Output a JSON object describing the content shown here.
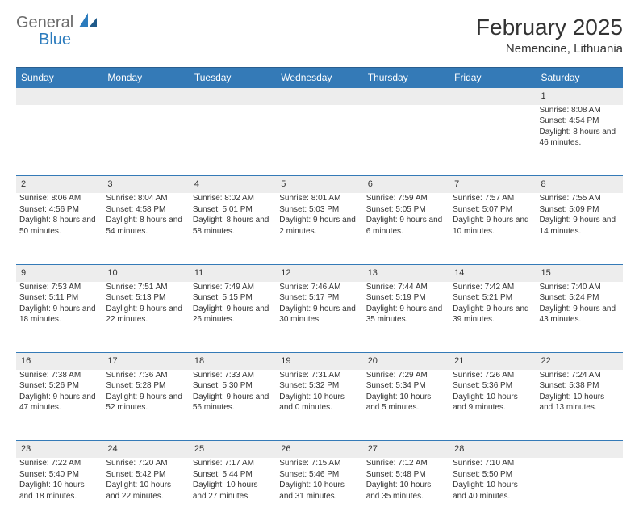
{
  "logo": {
    "general": "General",
    "blue": "Blue"
  },
  "title": {
    "month": "February 2025",
    "location": "Nemencine, Lithuania"
  },
  "colors": {
    "header_bg": "#347ab7",
    "header_text": "#ffffff",
    "daynum_bg": "#ededed",
    "border": "#347ab7",
    "logo_blue": "#2b7bbd",
    "logo_grey": "#6b6b6b"
  },
  "dayNames": [
    "Sunday",
    "Monday",
    "Tuesday",
    "Wednesday",
    "Thursday",
    "Friday",
    "Saturday"
  ],
  "weeks": [
    {
      "nums": [
        "",
        "",
        "",
        "",
        "",
        "",
        "1"
      ],
      "cells": [
        "",
        "",
        "",
        "",
        "",
        "",
        "Sunrise: 8:08 AM\nSunset: 4:54 PM\nDaylight: 8 hours and 46 minutes."
      ]
    },
    {
      "nums": [
        "2",
        "3",
        "4",
        "5",
        "6",
        "7",
        "8"
      ],
      "cells": [
        "Sunrise: 8:06 AM\nSunset: 4:56 PM\nDaylight: 8 hours and 50 minutes.",
        "Sunrise: 8:04 AM\nSunset: 4:58 PM\nDaylight: 8 hours and 54 minutes.",
        "Sunrise: 8:02 AM\nSunset: 5:01 PM\nDaylight: 8 hours and 58 minutes.",
        "Sunrise: 8:01 AM\nSunset: 5:03 PM\nDaylight: 9 hours and 2 minutes.",
        "Sunrise: 7:59 AM\nSunset: 5:05 PM\nDaylight: 9 hours and 6 minutes.",
        "Sunrise: 7:57 AM\nSunset: 5:07 PM\nDaylight: 9 hours and 10 minutes.",
        "Sunrise: 7:55 AM\nSunset: 5:09 PM\nDaylight: 9 hours and 14 minutes."
      ]
    },
    {
      "nums": [
        "9",
        "10",
        "11",
        "12",
        "13",
        "14",
        "15"
      ],
      "cells": [
        "Sunrise: 7:53 AM\nSunset: 5:11 PM\nDaylight: 9 hours and 18 minutes.",
        "Sunrise: 7:51 AM\nSunset: 5:13 PM\nDaylight: 9 hours and 22 minutes.",
        "Sunrise: 7:49 AM\nSunset: 5:15 PM\nDaylight: 9 hours and 26 minutes.",
        "Sunrise: 7:46 AM\nSunset: 5:17 PM\nDaylight: 9 hours and 30 minutes.",
        "Sunrise: 7:44 AM\nSunset: 5:19 PM\nDaylight: 9 hours and 35 minutes.",
        "Sunrise: 7:42 AM\nSunset: 5:21 PM\nDaylight: 9 hours and 39 minutes.",
        "Sunrise: 7:40 AM\nSunset: 5:24 PM\nDaylight: 9 hours and 43 minutes."
      ]
    },
    {
      "nums": [
        "16",
        "17",
        "18",
        "19",
        "20",
        "21",
        "22"
      ],
      "cells": [
        "Sunrise: 7:38 AM\nSunset: 5:26 PM\nDaylight: 9 hours and 47 minutes.",
        "Sunrise: 7:36 AM\nSunset: 5:28 PM\nDaylight: 9 hours and 52 minutes.",
        "Sunrise: 7:33 AM\nSunset: 5:30 PM\nDaylight: 9 hours and 56 minutes.",
        "Sunrise: 7:31 AM\nSunset: 5:32 PM\nDaylight: 10 hours and 0 minutes.",
        "Sunrise: 7:29 AM\nSunset: 5:34 PM\nDaylight: 10 hours and 5 minutes.",
        "Sunrise: 7:26 AM\nSunset: 5:36 PM\nDaylight: 10 hours and 9 minutes.",
        "Sunrise: 7:24 AM\nSunset: 5:38 PM\nDaylight: 10 hours and 13 minutes."
      ]
    },
    {
      "nums": [
        "23",
        "24",
        "25",
        "26",
        "27",
        "28",
        ""
      ],
      "cells": [
        "Sunrise: 7:22 AM\nSunset: 5:40 PM\nDaylight: 10 hours and 18 minutes.",
        "Sunrise: 7:20 AM\nSunset: 5:42 PM\nDaylight: 10 hours and 22 minutes.",
        "Sunrise: 7:17 AM\nSunset: 5:44 PM\nDaylight: 10 hours and 27 minutes.",
        "Sunrise: 7:15 AM\nSunset: 5:46 PM\nDaylight: 10 hours and 31 minutes.",
        "Sunrise: 7:12 AM\nSunset: 5:48 PM\nDaylight: 10 hours and 35 minutes.",
        "Sunrise: 7:10 AM\nSunset: 5:50 PM\nDaylight: 10 hours and 40 minutes.",
        ""
      ]
    }
  ]
}
